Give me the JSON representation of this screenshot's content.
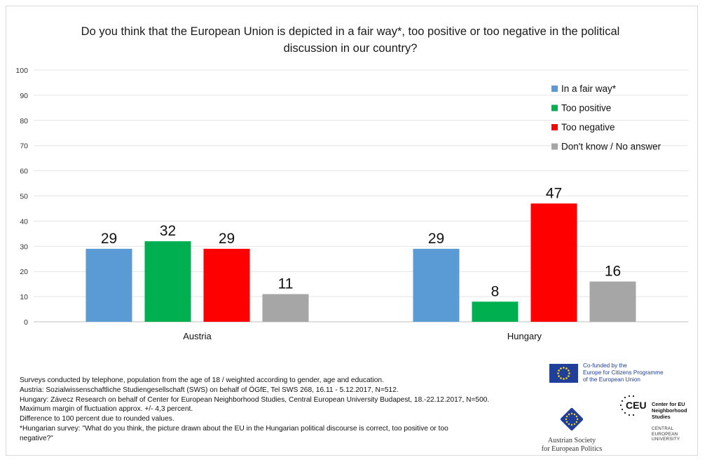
{
  "chart_data": {
    "type": "bar",
    "title": "Do you think that the European Union is depicted in a fair way*, too positive or too negative in the political discussion in our country?",
    "categories": [
      "Austria",
      "Hungary"
    ],
    "series": [
      {
        "name": "In a fair way*",
        "color": "#5b9bd5",
        "values": [
          29,
          29
        ]
      },
      {
        "name": "Too positive",
        "color": "#00b050",
        "values": [
          32,
          8
        ]
      },
      {
        "name": "Too negative",
        "color": "#ff0000",
        "values": [
          29,
          47
        ]
      },
      {
        "name": "Don't know / No answer",
        "color": "#a6a6a6",
        "values": [
          11,
          16
        ]
      }
    ],
    "ylim": [
      0,
      100
    ],
    "yticks": [
      0,
      10,
      20,
      30,
      40,
      50,
      60,
      70,
      80,
      90,
      100
    ],
    "xlabel": "",
    "ylabel": "",
    "grid": true,
    "legend_position": "top-right"
  },
  "notes": [
    "Surveys conducted by telephone, population from the age of 18 / weighted according to gender, age and education.",
    "Austria: Sozialwissenschaftliche Studiengesellschaft (SWS) on behalf of ÖGfE, Tel SWS 268, 16.11 - 5.12.2017, N=512.",
    "Hungary: Závecz Research on behalf of Center for European Neighborhood Studies, Central European University Budapest, 18.-22.12.2017, N=500.",
    "Maximum margin of fluctuation approx. +/- 4,3 percent.",
    "Difference to 100 percent due to rounded values.",
    "*Hungarian survey: \"What do you think, the picture drawn about the EU in the Hungarian political discourse is correct, too positive or too",
    "negative?\""
  ],
  "logos": {
    "eu_lines": [
      "Co-funded by the",
      "Europe for Citizens Programme",
      "of the European Union"
    ],
    "asep_lines": [
      "Austrian Society",
      "for European Politics"
    ],
    "ceu_mark": "CEU",
    "ceu_name_lines": [
      "Center for EU",
      "Neighborhood",
      "Studies"
    ],
    "ceu_sub_lines": [
      "CENTRAL",
      "EUROPEAN",
      "UNIVERSITY"
    ],
    "eu_flag_color": "#1f3f9a"
  }
}
